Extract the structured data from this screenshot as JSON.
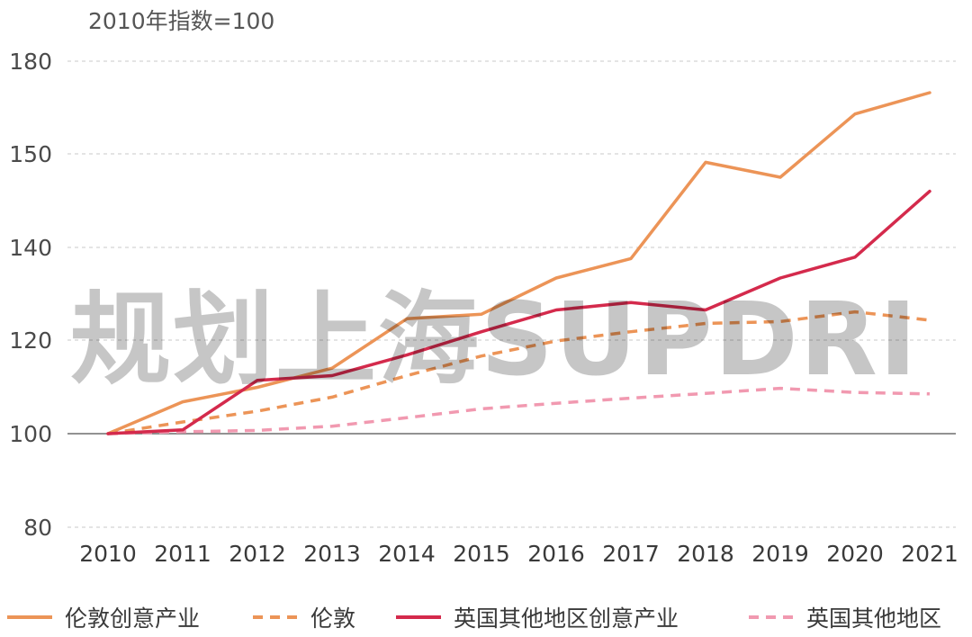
{
  "chart_data": {
    "type": "line",
    "unit_label": "2010年指数=100",
    "watermark": "规划上海SUPDRI",
    "x": [
      "2010",
      "2011",
      "2012",
      "2013",
      "2014",
      "2015",
      "2016",
      "2017",
      "2018",
      "2019",
      "2020",
      "2021"
    ],
    "y_ticks": [
      "80",
      "100",
      "120",
      "140",
      "150",
      "180"
    ],
    "y_baseline": "100",
    "grid": true,
    "legend_position": "bottom",
    "series": [
      {
        "name": "伦敦创意产业",
        "color": "#ec9457",
        "style": "solid",
        "values": [
          100,
          106.8,
          109.9,
          114,
          124.6,
          125.6,
          133.4,
          137.6,
          149.1,
          147.5,
          162.9,
          169.8
        ]
      },
      {
        "name": "伦敦",
        "color": "#ec9457",
        "style": "dashed",
        "values": [
          100,
          102.5,
          104.8,
          107.8,
          112.4,
          116.6,
          119.8,
          121.8,
          123.6,
          124,
          126.1,
          124.3
        ]
      },
      {
        "name": "英国其他地区创意产业",
        "color": "#d42a4c",
        "style": "solid",
        "values": [
          100,
          100.8,
          111.4,
          112.4,
          116.8,
          121.8,
          126.5,
          128.1,
          126.5,
          133.4,
          137.9,
          146
        ]
      },
      {
        "name": "英国其他地区",
        "color": "#f199b0",
        "style": "dashed",
        "values": [
          100,
          100.4,
          100.7,
          101.6,
          103.4,
          105.3,
          106.5,
          107.6,
          108.6,
          109.7,
          108.8,
          108.5
        ]
      }
    ]
  }
}
